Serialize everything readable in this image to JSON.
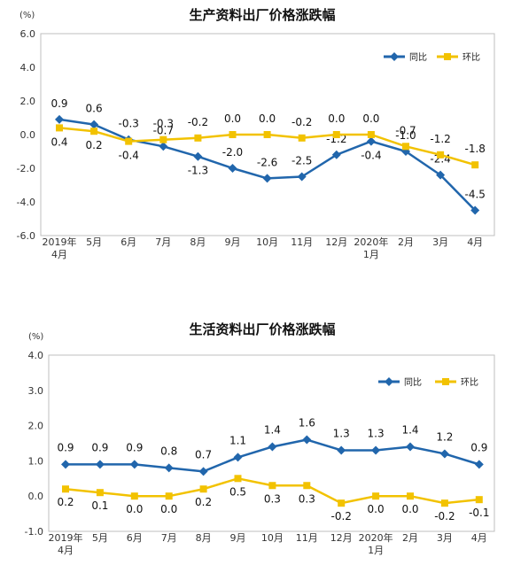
{
  "chart_data": [
    {
      "type": "line",
      "title": "生产资料出厂价格涨跌幅",
      "unit": "(%)",
      "ylim": [
        -6.0,
        6.0
      ],
      "yticks": [
        "6.0",
        "4.0",
        "2.0",
        "0.0",
        "-2.0",
        "-4.0",
        "-6.0"
      ],
      "categories": [
        [
          "2019年",
          "4月"
        ],
        [
          "5月"
        ],
        [
          "6月"
        ],
        [
          "7月"
        ],
        [
          "8月"
        ],
        [
          "9月"
        ],
        [
          "10月"
        ],
        [
          "11月"
        ],
        [
          "12月"
        ],
        [
          "2020年",
          "1月"
        ],
        [
          "2月"
        ],
        [
          "3月"
        ],
        [
          "4月"
        ]
      ],
      "legend_position": "top-right",
      "series": [
        {
          "name": "同比",
          "color": "#2166ac",
          "marker": "diamond",
          "values": [
            0.9,
            0.6,
            -0.3,
            -0.7,
            -1.3,
            -2.0,
            -2.6,
            -2.5,
            -1.2,
            -0.4,
            -1.0,
            -2.4,
            -4.5
          ],
          "labels": [
            "0.9",
            "0.6",
            "-0.3",
            "-0.7",
            "-1.3",
            "-2.0",
            "-2.6",
            "-2.5",
            "-1.2",
            "-0.4",
            "-1.0",
            "-2.4",
            "-4.5"
          ]
        },
        {
          "name": "环比",
          "color": "#f2c200",
          "marker": "square",
          "values": [
            0.4,
            0.2,
            -0.4,
            -0.3,
            -0.2,
            0.0,
            0.0,
            -0.2,
            0.0,
            0.0,
            -0.7,
            -1.2,
            -1.8
          ],
          "labels": [
            "0.4",
            "0.2",
            "-0.4",
            "-0.3",
            "-0.2",
            "0.0",
            "0.0",
            "-0.2",
            "0.0",
            "0.0",
            "-0.7",
            "-1.2",
            "-1.8"
          ]
        }
      ]
    },
    {
      "type": "line",
      "title": "生活资料出厂价格涨跌幅",
      "unit": "(%)",
      "ylim": [
        -1.0,
        4.0
      ],
      "yticks": [
        "4.0",
        "3.0",
        "2.0",
        "1.0",
        "0.0",
        "-1.0"
      ],
      "categories": [
        [
          "2019年",
          "4月"
        ],
        [
          "5月"
        ],
        [
          "6月"
        ],
        [
          "7月"
        ],
        [
          "8月"
        ],
        [
          "9月"
        ],
        [
          "10月"
        ],
        [
          "11月"
        ],
        [
          "12月"
        ],
        [
          "2020年",
          "1月"
        ],
        [
          "2月"
        ],
        [
          "3月"
        ],
        [
          "4月"
        ]
      ],
      "legend_position": "top-right",
      "series": [
        {
          "name": "同比",
          "color": "#2166ac",
          "marker": "diamond",
          "values": [
            0.9,
            0.9,
            0.9,
            0.8,
            0.7,
            1.1,
            1.4,
            1.6,
            1.3,
            1.3,
            1.4,
            1.2,
            0.9
          ],
          "labels": [
            "0.9",
            "0.9",
            "0.9",
            "0.8",
            "0.7",
            "1.1",
            "1.4",
            "1.6",
            "1.3",
            "1.3",
            "1.4",
            "1.2",
            "0.9"
          ]
        },
        {
          "name": "环比",
          "color": "#f2c200",
          "marker": "square",
          "values": [
            0.2,
            0.1,
            0.0,
            0.0,
            0.2,
            0.5,
            0.3,
            0.3,
            -0.2,
            0.0,
            0.0,
            -0.2,
            -0.1
          ],
          "labels": [
            "0.2",
            "0.1",
            "0.0",
            "0.0",
            "0.2",
            "0.5",
            "0.3",
            "0.3",
            "-0.2",
            "0.0",
            "0.0",
            "-0.2",
            "-0.1"
          ]
        }
      ]
    }
  ]
}
